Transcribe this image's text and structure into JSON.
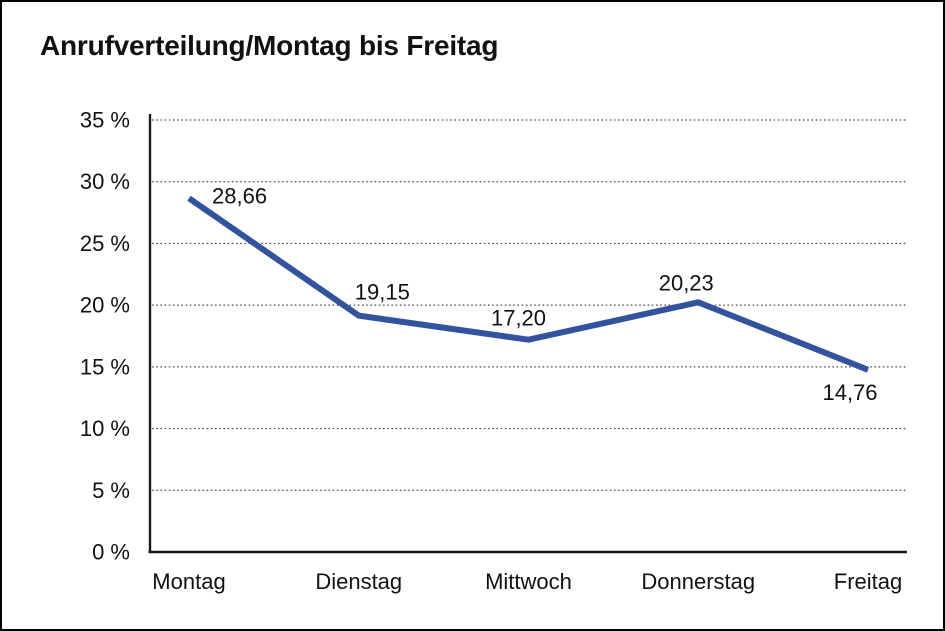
{
  "window": {
    "background_color": "#ffffff",
    "frame_color": "#000000"
  },
  "chart_data": {
    "type": "line",
    "title": "Anrufverteilung/Montag bis Freitag",
    "categories": [
      "Montag",
      "Dienstag",
      "Mittwoch",
      "Donnerstag",
      "Freitag"
    ],
    "values": [
      28.66,
      19.15,
      17.2,
      20.23,
      14.76
    ],
    "point_labels": [
      "28,66",
      "19,15",
      "17,20",
      "20,23",
      "14,76"
    ],
    "unit": "%",
    "xlabel": "",
    "ylabel": "",
    "ylim": [
      0,
      35
    ],
    "ytick_step": 5,
    "ytick_labels": [
      "0 %",
      "5 %",
      "10 %",
      "15 %",
      "20 %",
      "25 %",
      "30 %",
      "35 %"
    ],
    "grid": "horizontal-dotted",
    "legend": "none",
    "line_color": "#34539E",
    "text_color": "#111111",
    "label_offsets": [
      [
        23,
        5,
        "start"
      ],
      [
        -4,
        -16,
        "start"
      ],
      [
        -10,
        -14,
        "middle"
      ],
      [
        -12,
        -12,
        "middle"
      ],
      [
        -18,
        30,
        "middle"
      ]
    ]
  }
}
